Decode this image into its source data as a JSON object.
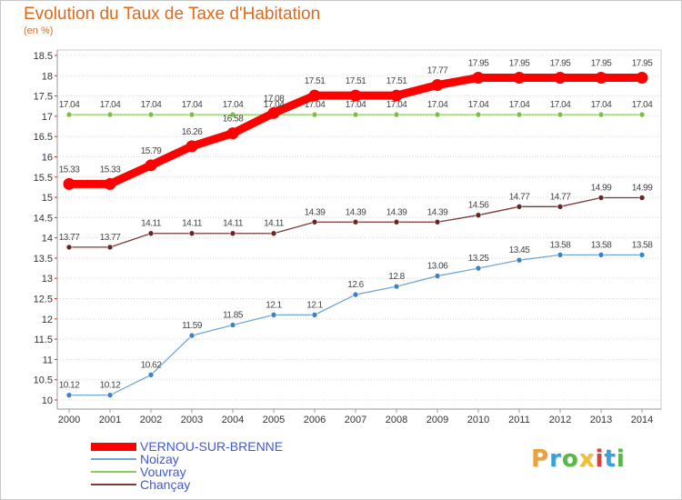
{
  "title": "Evolution du Taux de Taxe d'Habitation",
  "subtitle": "(en %)",
  "logo": {
    "text": "Proxiti",
    "letters": [
      {
        "ch": "P",
        "color": "#e8a33b"
      },
      {
        "ch": "r",
        "color": "#3aa0d8"
      },
      {
        "ch": "o",
        "color": "#58b847"
      },
      {
        "ch": "x",
        "color": "#f0c030"
      },
      {
        "ch": "i",
        "color": "#d8413a"
      },
      {
        "ch": "t",
        "color": "#3aa0d8"
      },
      {
        "ch": "i",
        "color": "#58b847"
      }
    ]
  },
  "chart_data": {
    "type": "line",
    "title": "Evolution du Taux de Taxe d'Habitation",
    "ylabel": "(en %)",
    "xlabel": "",
    "ylim": [
      10,
      18.5
    ],
    "ytick_step": 0.5,
    "grid": "horizontal",
    "legend_position": "bottom-left",
    "x": [
      "2000",
      "2001",
      "2002",
      "2003",
      "2004",
      "2005",
      "2006",
      "2007",
      "2008",
      "2009",
      "2010",
      "2011",
      "2012",
      "2013",
      "2014"
    ],
    "series": [
      {
        "name": "VERNOU-SUR-BRENNE",
        "color": "#ff0000",
        "marker_color": "#ff0000",
        "values": [
          15.33,
          15.33,
          15.79,
          16.26,
          16.58,
          17.08,
          17.51,
          17.51,
          17.51,
          17.77,
          17.95,
          17.95,
          17.95,
          17.95,
          17.95
        ]
      },
      {
        "name": "Noizay",
        "color": "#72a8d8",
        "marker_color": "#3d82c4",
        "values": [
          10.12,
          10.12,
          10.62,
          11.59,
          11.85,
          12.1,
          12.1,
          12.6,
          12.8,
          13.06,
          13.25,
          13.45,
          13.58,
          13.58,
          13.58
        ]
      },
      {
        "name": "Vouvray",
        "color": "#88cc55",
        "marker_color": "#7ac043",
        "values": [
          17.04,
          17.04,
          17.04,
          17.04,
          17.04,
          17.04,
          17.04,
          17.04,
          17.04,
          17.04,
          17.04,
          17.04,
          17.04,
          17.04,
          17.04
        ]
      },
      {
        "name": "Chançay",
        "color": "#7a3a3a",
        "marker_color": "#6a2424",
        "values": [
          13.77,
          13.77,
          14.11,
          14.11,
          14.11,
          14.11,
          14.39,
          14.39,
          14.39,
          14.39,
          14.56,
          14.77,
          14.77,
          14.99,
          14.99
        ]
      }
    ]
  }
}
